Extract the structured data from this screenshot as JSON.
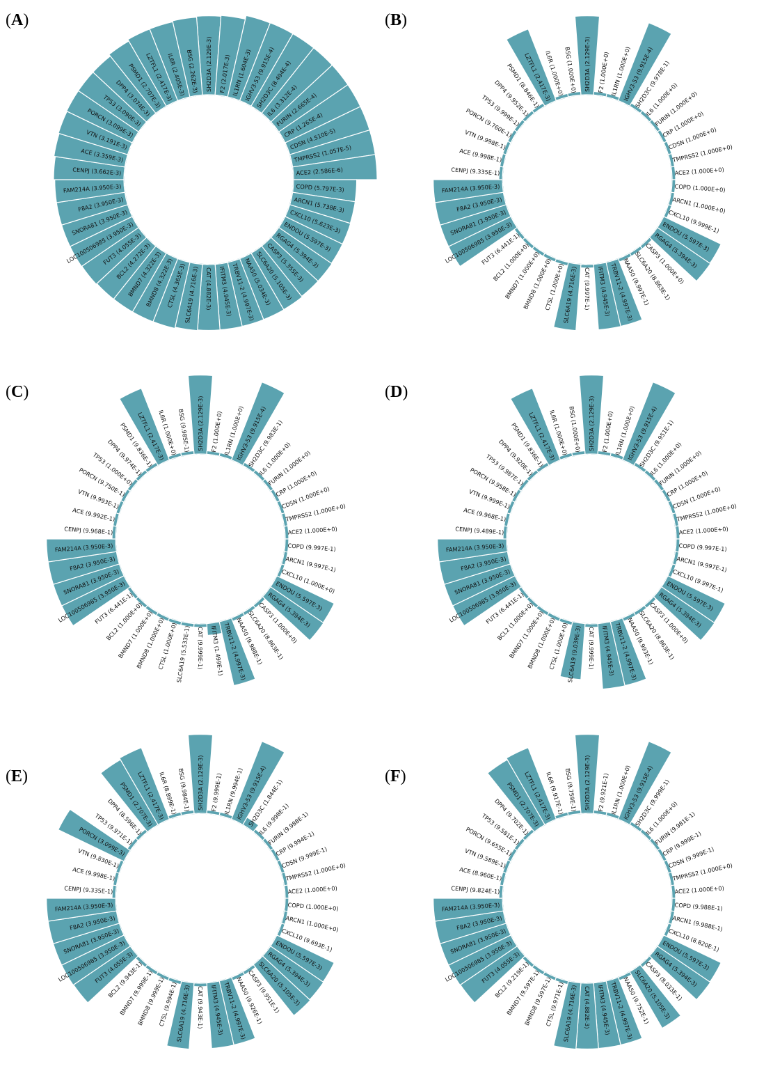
{
  "figure": {
    "bar_color": "#5ba3b0",
    "text_color": "#111111",
    "background": "#ffffff"
  },
  "chart_data": [
    {
      "panel": "A",
      "type": "bar",
      "polar": true,
      "categories": [
        "SH2D3A",
        "F2",
        "IL1RN",
        "IGHV3-53",
        "SH2D3C",
        "IL6",
        "FURIN",
        "CRP",
        "CDSN",
        "TMPRSS2",
        "ACE2",
        "COPD",
        "ARCN1",
        "CXCL10",
        "ENDOU",
        "RGAG4",
        "CASP3",
        "SLC6A20",
        "NAA50",
        "TRBV11-2",
        "IFITM3",
        "CAT",
        "SLC6A19",
        "CTSL",
        "BMND8",
        "BMND7",
        "BCL2",
        "FUT3",
        "LOC100506985",
        "SNORA81",
        "F8A2",
        "FAM214A",
        "CENPJ",
        "ACE",
        "VTN",
        "PORCN",
        "TP53",
        "DPP4",
        "PSMD1",
        "LZTFL1",
        "IL6R",
        "BSG"
      ],
      "values": [
        "2.129E-3",
        "2.017E-3",
        "1.604E-3",
        "9.915E-4",
        "8.494E-4",
        "3.312E-4",
        "2.665E-4",
        "1.265E-4",
        "4.510E-5",
        "1.057E-5",
        "2.586E-6",
        "5.797E-3",
        "5.738E-3",
        "5.623E-3",
        "5.597E-3",
        "5.394E-3",
        "5.355E-3",
        "5.105E-3",
        "5.034E-3",
        "4.997E-3",
        "4.945E-3",
        "4.882E-3",
        "4.716E-3",
        "4.365E-3",
        "4.322E-3",
        "4.322E-3",
        "4.272E-3",
        "4.055E-3",
        "3.950E-3",
        "3.950E-3",
        "3.950E-3",
        "3.950E-3",
        "3.662E-3",
        "3.359E-3",
        "3.191E-3",
        "3.099E-3",
        "3.090E-3",
        "3.074E-3",
        "2.707E-3",
        "2.417E-3",
        "2.405E-3",
        "2.262E-3"
      ]
    },
    {
      "panel": "B",
      "type": "bar",
      "polar": true,
      "categories": [
        "SH2D3A",
        "F2",
        "IL1RN",
        "IGHV3-53",
        "SH2D3C",
        "IL6",
        "FURIN",
        "CRP",
        "CDSN",
        "TMPRSS2",
        "ACE2",
        "COPD",
        "ARCN1",
        "CXCL10",
        "ENDOU",
        "RGAG4",
        "CASP3",
        "SLC6A20",
        "NAA50",
        "TRBV11-2",
        "IFITM3",
        "CAT",
        "SLC6A19",
        "CTSL",
        "BMND8",
        "BMND7",
        "BCL2",
        "FUT3",
        "LOC100506985",
        "SNORA81",
        "F8A2",
        "FAM214A",
        "CENPJ",
        "ACE",
        "VTN",
        "PORCN",
        "TP53",
        "DPP4",
        "PSMD1",
        "LZTFL1",
        "IL6R",
        "BSG"
      ],
      "values": [
        "2.129E-3",
        "1.000E+0",
        "1.000E+0",
        "9.915E-4",
        "9.978E-1",
        "1.000E+0",
        "1.000E+0",
        "1.000E+0",
        "1.000E+0",
        "1.000E+0",
        "1.000E+0",
        "1.000E+0",
        "1.000E+0",
        "9.999E-1",
        "5.597E-3",
        "5.394E-3",
        "1.000E+0",
        "8.863E-1",
        "9.997E-1",
        "4.997E-3",
        "4.945E-3",
        "9.997E-1",
        "4.716E-3",
        "1.000E+0",
        "1.000E+0",
        "1.000E+0",
        "1.000E+0",
        "6.441E-1",
        "3.950E-3",
        "3.950E-3",
        "3.950E-3",
        "3.950E-3",
        "9.335E-1",
        "9.998E-1",
        "9.998E-1",
        "9.760E-1",
        "9.999E-1",
        "9.952E-1",
        "8.846E-1",
        "2.417E-3",
        "1.000E+0",
        "1.000E+0"
      ]
    },
    {
      "panel": "C",
      "type": "bar",
      "polar": true,
      "categories": [
        "SH2D3A",
        "F2",
        "IL1RN",
        "IGHV3-53",
        "SH2D3C",
        "IL6",
        "FURIN",
        "CRP",
        "CDSN",
        "TMPRSS2",
        "ACE2",
        "COPD",
        "ARCN1",
        "CXCL10",
        "ENDOU",
        "RGAG4",
        "CASP3",
        "SLC6A20",
        "NAA50",
        "TRBV11-2",
        "IFITM3",
        "CAT",
        "SLC6A19",
        "CTSL",
        "BMND8",
        "BMND7",
        "BCL2",
        "FUT3",
        "LOC100506985",
        "SNORA81",
        "F8A2",
        "FAM214A",
        "CENPJ",
        "ACE",
        "VTN",
        "PORCN",
        "TP53",
        "DPP4",
        "PSMD1",
        "LZTFL1",
        "IL6R",
        "BSG"
      ],
      "values": [
        "2.129E-3",
        "1.000E+0",
        "1.000E+0",
        "9.915E-4",
        "9.983E-1",
        "1.000E+0",
        "1.000E+0",
        "1.000E+0",
        "1.000E+0",
        "1.000E+0",
        "1.000E+0",
        "9.997E-1",
        "9.997E-1",
        "1.000E+0",
        "5.597E-3",
        "5.394E-3",
        "1.000E+0",
        "8.863E-1",
        "9.988E-1",
        "4.997E-3",
        "1.499E-1",
        "9.999E-1",
        "5.533E-1",
        "1.000E+0",
        "1.000E+0",
        "1.000E+0",
        "1.000E+0",
        "6.441E-1",
        "3.950E-3",
        "3.950E-3",
        "3.950E-3",
        "3.950E-3",
        "9.968E-1",
        "9.992E-1",
        "9.993E-1",
        "9.750E-1",
        "1.000E+0",
        "9.974E-1",
        "9.836E-1",
        "2.417E-3",
        "1.000E+0",
        "9.985E-1"
      ]
    },
    {
      "panel": "D",
      "type": "bar",
      "polar": true,
      "categories": [
        "SH2D3A",
        "F2",
        "IL1RN",
        "IGHV3-53",
        "SH2D3C",
        "IL6",
        "FURIN",
        "CRP",
        "CDSN",
        "TMPRSS2",
        "ACE2",
        "COPD",
        "ARCN1",
        "CXCL10",
        "ENDOU",
        "RGAG4",
        "CASP3",
        "SLC6A20",
        "NAA50",
        "TRBV11-2",
        "IFITM3",
        "CAT",
        "SLC6A19",
        "CTSL",
        "BMND8",
        "BMND7",
        "BCL2",
        "FUT3",
        "LOC100506985",
        "SNORA81",
        "F8A2",
        "FAM214A",
        "CENPJ",
        "ACE",
        "VTN",
        "PORCN",
        "TP53",
        "DPP4",
        "PSMD1",
        "LZTFL1",
        "IL6R",
        "BSG"
      ],
      "values": [
        "2.129E-3",
        "1.000E+0",
        "1.000E+0",
        "9.915E-4",
        "9.951E-1",
        "1.000E+0",
        "1.000E+0",
        "1.000E+0",
        "1.000E+0",
        "1.000E+0",
        "1.000E+0",
        "9.997E-1",
        "9.997E-1",
        "9.997E-1",
        "5.597E-3",
        "5.394E-3",
        "1.000E+0",
        "8.863E-1",
        "9.993E-1",
        "4.997E-3",
        "4.945E-3",
        "9.999E-1",
        "9.039E-3",
        "1.000E+0",
        "1.000E+0",
        "1.000E+0",
        "1.000E+0",
        "6.441E-1",
        "3.950E-3",
        "3.950E-3",
        "3.950E-3",
        "3.950E-3",
        "9.489E-1",
        "9.968E-1",
        "9.999E-1",
        "9.958E-1",
        "9.987E-1",
        "9.920E-1",
        "9.836E-1",
        "2.417E-3",
        "1.000E+0",
        "1.000E+0"
      ]
    },
    {
      "panel": "E",
      "type": "bar",
      "polar": true,
      "categories": [
        "SH2D3A",
        "F2",
        "IL1RN",
        "IGHV3-53",
        "SH2D3C",
        "IL6",
        "FURIN",
        "CRP",
        "CDSN",
        "TMPRSS2",
        "ACE2",
        "COPD",
        "ARCN1",
        "CXCL10",
        "ENDOU",
        "RGAG4",
        "SLC6A20",
        "CASP3",
        "NAA50",
        "TRBV11-2",
        "IFITM3",
        "CAT",
        "SLC6A19",
        "CTSL",
        "BMND8",
        "BMND7",
        "BCL2",
        "FUT3",
        "LOC100506985",
        "SNORA81",
        "F8A2",
        "FAM214A",
        "CENPJ",
        "ACE",
        "VTN",
        "PORCN",
        "TP53",
        "DPP4",
        "PSMD1",
        "LZTFL1",
        "IL6R",
        "BSG"
      ],
      "values": [
        "2.129E-3",
        "9.999E-1",
        "9.994E-1",
        "9.915E-4",
        "1.844E-1",
        "9.998E-1",
        "9.988E-1",
        "9.994E-1",
        "9.999E-1",
        "1.000E+0",
        "1.000E+0",
        "1.000E+0",
        "1.000E+0",
        "9.693E-1",
        "5.597E-3",
        "5.394E-3",
        "5.105E-3",
        "9.951E-1",
        "9.926E-1",
        "4.997E-3",
        "4.945E-3",
        "9.943E-1",
        "4.716E-3",
        "9.994E-1",
        "9.999E-1",
        "9.999E-1",
        "9.943E-1",
        "4.055E-3",
        "3.950E-3",
        "3.950E-3",
        "3.950E-3",
        "3.950E-3",
        "9.335E-1",
        "9.998E-1",
        "9.830E-1",
        "3.099E-3",
        "9.971E-1",
        "8.596E-1",
        "2.707E-3",
        "2.417E-3",
        "8.899E-1",
        "9.984E-1"
      ]
    },
    {
      "panel": "F",
      "type": "bar",
      "polar": true,
      "categories": [
        "SH2D3A",
        "F2",
        "IL1RN",
        "IGHV3-53",
        "SH2D3C",
        "IL6",
        "FURIN",
        "CRP",
        "CDSN",
        "TMPRSS2",
        "ACE2",
        "COPD",
        "ARCN1",
        "CXCL10",
        "ENDOU",
        "RGAG4",
        "CASP3",
        "SLC6A20",
        "NAA50",
        "TRBV11-2",
        "IFITM3",
        "CAT",
        "SLC6A19",
        "CTSL",
        "BMND8",
        "BMND7",
        "BCL2",
        "FUT3",
        "LOC100506985",
        "SNORA81",
        "F8A2",
        "FAM214A",
        "CENPJ",
        "ACE",
        "VTN",
        "PORCN",
        "TP53",
        "DPP4",
        "PSMD1",
        "LZTFL1",
        "IL6R",
        "BSG"
      ],
      "values": [
        "2.129E-3",
        "9.921E-1",
        "1.000E+0",
        "9.915E-4",
        "9.999E-1",
        "1.000E+0",
        "9.981E-1",
        "9.999E-1",
        "9.999E-1",
        "1.000E+0",
        "1.000E+0",
        "9.988E-1",
        "9.988E-1",
        "8.820E-1",
        "5.597E-3",
        "5.394E-3",
        "8.033E-1",
        "5.105E-3",
        "9.752E-1",
        "4.997E-3",
        "4.945E-3",
        "4.882E-3",
        "4.716E-3",
        "9.971E-1",
        "9.597E-1",
        "9.597E-1",
        "9.219E-1",
        "4.055E-3",
        "3.950E-3",
        "3.950E-3",
        "3.950E-3",
        "3.950E-3",
        "9.824E-1",
        "8.960E-1",
        "9.589E-1",
        "9.655E-1",
        "9.581E-1",
        "9.702E-1",
        "2.707E-3",
        "2.417E-3",
        "9.917E-1",
        "9.759E-1"
      ]
    }
  ]
}
